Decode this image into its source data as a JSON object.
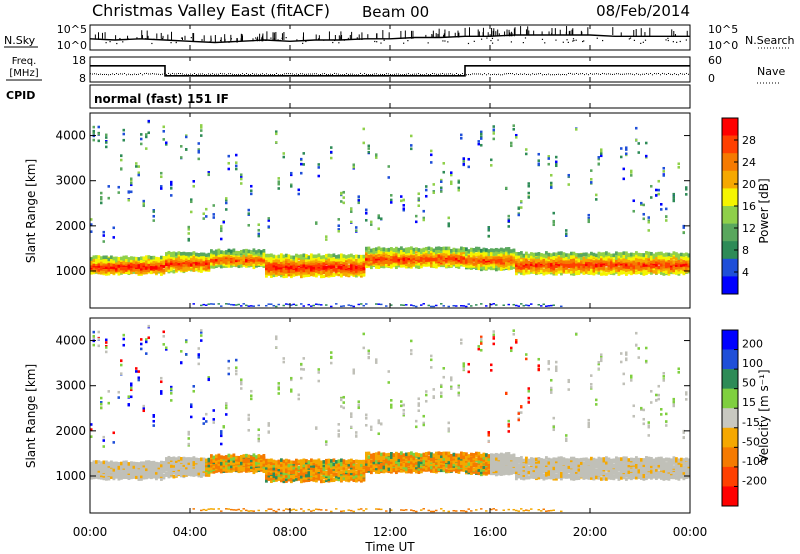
{
  "header": {
    "title": "Christmas Valley East (fitACF)",
    "beam": "Beam 00",
    "date": "08/Feb/2014"
  },
  "side_labels": {
    "nsky": "N.Sky",
    "freq_line1": "Freq.",
    "freq_line2": "[MHz]",
    "cpid": "CPID",
    "nsearch": "N.Search",
    "nave": "Nave"
  },
  "cpid_text": "normal (fast) 151 IF",
  "colors": {
    "power_scale": [
      "#0000ff",
      "#1f4fd8",
      "#2e8b57",
      "#59a75e",
      "#8fd04a",
      "#f5f500",
      "#f5a800",
      "#f57a00",
      "#ff4000",
      "#ff0000"
    ],
    "velocity_scale": [
      "#0000ff",
      "#1f4fd8",
      "#2e8b57",
      "#7fcf3f",
      "#c8c8c0",
      "#f5a800",
      "#f57a00",
      "#ff4000",
      "#ff0000"
    ],
    "ground_scatter": "#c0c0b8"
  },
  "chart_data": [
    {
      "type": "line",
      "name": "noise-panel",
      "left_axis_ticks": [
        "10^5",
        "10^0"
      ],
      "right_axis_ticks": [
        "10^5",
        "10^0"
      ],
      "xlim_hours": [
        0,
        24
      ],
      "noise_level": [
        [
          0,
          0.55
        ],
        [
          1,
          0.6
        ],
        [
          2,
          0.55
        ],
        [
          3,
          0.6
        ],
        [
          4,
          0.65
        ],
        [
          5,
          0.7
        ],
        [
          6,
          0.65
        ],
        [
          7,
          0.6
        ],
        [
          8,
          0.65
        ],
        [
          9,
          0.6
        ],
        [
          10,
          0.6
        ],
        [
          11,
          0.55
        ],
        [
          12,
          0.55
        ],
        [
          13,
          0.5
        ],
        [
          14,
          0.5
        ],
        [
          15,
          0.45
        ],
        [
          16,
          0.45
        ],
        [
          17,
          0.4
        ],
        [
          18,
          0.4
        ],
        [
          19,
          0.4
        ],
        [
          20,
          0.4
        ],
        [
          21,
          0.45
        ],
        [
          22,
          0.45
        ],
        [
          23,
          0.45
        ],
        [
          24,
          0.45
        ]
      ]
    },
    {
      "type": "line",
      "name": "frequency-panel",
      "left_axis_ticks": [
        18,
        8
      ],
      "right_axis_ticks": [
        60,
        0
      ],
      "frequency_mhz_steps": [
        [
          0,
          14.5
        ],
        [
          3,
          14.5
        ],
        [
          3,
          10.5
        ],
        [
          15,
          10.5
        ],
        [
          15,
          14.5
        ],
        [
          24,
          14.5
        ]
      ],
      "nave_level": 20
    },
    {
      "type": "heatmap",
      "name": "power-panel",
      "ylabel": "Slant Range [km]",
      "yticks": [
        1000,
        2000,
        3000,
        4000
      ],
      "ylim": [
        180,
        4500
      ],
      "xlim_hours": [
        0,
        24
      ],
      "colorbar_label": "Power [dB]",
      "colorbar_ticks": [
        4,
        8,
        12,
        16,
        20,
        24,
        28
      ],
      "scatter_bands": [
        {
          "t0": 0,
          "t1": 3.0,
          "r0": 1000,
          "r1": 1350,
          "level": 0.95
        },
        {
          "t0": 3.0,
          "t1": 4.8,
          "r0": 1050,
          "r1": 1450,
          "level": 0.9
        },
        {
          "t0": 4.8,
          "t1": 7.0,
          "r0": 1150,
          "r1": 1500,
          "level": 0.85
        },
        {
          "t0": 7.0,
          "t1": 11.0,
          "r0": 950,
          "r1": 1400,
          "level": 0.95
        },
        {
          "t0": 11.0,
          "t1": 15.0,
          "r0": 1150,
          "r1": 1550,
          "level": 0.9
        },
        {
          "t0": 15.0,
          "t1": 17.0,
          "r0": 1100,
          "r1": 1550,
          "level": 0.85
        },
        {
          "t0": 17.0,
          "t1": 24.0,
          "r0": 1000,
          "r1": 1450,
          "level": 0.9
        }
      ]
    },
    {
      "type": "heatmap",
      "name": "velocity-panel",
      "ylabel": "Slant Range [km]",
      "xlabel": "Time UT",
      "yticks": [
        1000,
        2000,
        3000,
        4000
      ],
      "ylim": [
        180,
        4500
      ],
      "xlim_hours": [
        0,
        24
      ],
      "xtick_labels": [
        "00:00",
        "04:00",
        "08:00",
        "12:00",
        "16:00",
        "20:00",
        "00:00"
      ],
      "colorbar_label": "Velocity [m s⁻¹]",
      "colorbar_ticks": [
        "200",
        "100",
        "50",
        "15",
        "-15",
        "-50",
        "-100",
        "-200"
      ]
    }
  ]
}
